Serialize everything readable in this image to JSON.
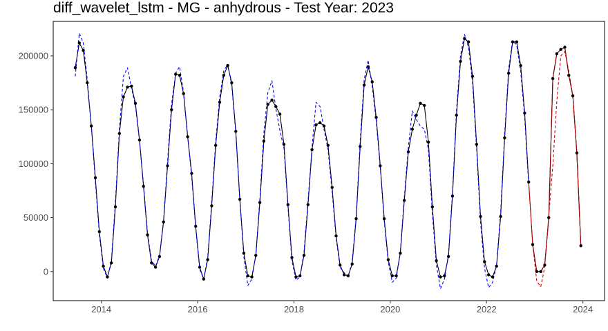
{
  "chart_data": {
    "type": "line",
    "title": "diff_wavelet_lstm - MG - anhydrous - Test Year: 2023",
    "xlabel": "",
    "ylabel": "",
    "grid": false,
    "xlim": [
      2013.0,
      2024.45
    ],
    "ylim": [
      -27000,
      232000
    ],
    "x_ticks": [
      2014,
      2016,
      2018,
      2020,
      2022,
      2024
    ],
    "y_ticks": [
      0,
      50000,
      100000,
      150000,
      200000
    ],
    "y_tick_labels": [
      "0",
      "50000",
      "100000",
      "150000",
      "200000"
    ],
    "colors": {
      "actual": "#000000",
      "train_fit": "#0000ff",
      "test_forecast": "#cc0000",
      "test_actual": "#8b0000",
      "axis": "#000000",
      "tick_text": "#4d4d4d"
    },
    "series": [
      {
        "style": "solid-with-points",
        "color": "#000000",
        "x": [
          2013.458,
          2013.542,
          2013.625,
          2013.708,
          2013.792,
          2013.875,
          2013.958,
          2014.042,
          2014.125,
          2014.208,
          2014.292,
          2014.375,
          2014.458,
          2014.542,
          2014.625,
          2014.708,
          2014.792,
          2014.875,
          2014.958,
          2015.042,
          2015.125,
          2015.208,
          2015.292,
          2015.375,
          2015.458,
          2015.542,
          2015.625,
          2015.708,
          2015.792,
          2015.875,
          2015.958,
          2016.042,
          2016.125,
          2016.208,
          2016.292,
          2016.375,
          2016.458,
          2016.542,
          2016.625,
          2016.708,
          2016.792,
          2016.875,
          2016.958,
          2017.042,
          2017.125,
          2017.208,
          2017.292,
          2017.375,
          2017.458,
          2017.542,
          2017.625,
          2017.708,
          2017.792,
          2017.875,
          2017.958,
          2018.042,
          2018.125,
          2018.208,
          2018.292,
          2018.375,
          2018.458,
          2018.542,
          2018.625,
          2018.708,
          2018.792,
          2018.875,
          2018.958,
          2019.042,
          2019.125,
          2019.208,
          2019.292,
          2019.375,
          2019.458,
          2019.542,
          2019.625,
          2019.708,
          2019.792,
          2019.875,
          2019.958,
          2020.042,
          2020.125,
          2020.208,
          2020.292,
          2020.375,
          2020.458,
          2020.542,
          2020.625,
          2020.708,
          2020.792,
          2020.875,
          2020.958,
          2021.042,
          2021.125,
          2021.208,
          2021.292,
          2021.375,
          2021.458,
          2021.542,
          2021.625,
          2021.708,
          2021.792,
          2021.875,
          2021.958,
          2022.042,
          2022.125,
          2022.208,
          2022.292,
          2022.375,
          2022.458,
          2022.542,
          2022.625,
          2022.708,
          2022.792,
          2022.875
        ],
        "values": [
          189000,
          212000,
          205000,
          175000,
          135000,
          87000,
          37000,
          5000,
          -5000,
          8000,
          60000,
          128000,
          162000,
          171000,
          172000,
          156000,
          122000,
          79000,
          34000,
          8000,
          4000,
          14000,
          46000,
          98000,
          150000,
          183000,
          182000,
          165000,
          125000,
          91000,
          42000,
          4000,
          -7000,
          11000,
          61000,
          117000,
          157000,
          182000,
          191000,
          175000,
          130000,
          67000,
          17000,
          -4000,
          -5000,
          15000,
          64000,
          121000,
          155000,
          159000,
          153000,
          146000,
          118000,
          62000,
          13000,
          -5000,
          -4000,
          15000,
          62000,
          113000,
          136000,
          138000,
          135000,
          117000,
          78000,
          33000,
          6000,
          -3000,
          -4000,
          7000,
          49000,
          116000,
          173000,
          190000,
          176000,
          143000,
          98000,
          49000,
          11000,
          -4000,
          -4000,
          17000,
          66000,
          111000,
          132000,
          145000,
          156000,
          154000,
          120000,
          60000,
          10000,
          -5000,
          -4000,
          14000,
          70000,
          145000,
          195000,
          216000,
          213000,
          181000,
          118000,
          51000,
          9000,
          -3000,
          -5000,
          5000,
          51000,
          124000,
          184000,
          213000,
          213000,
          191000,
          147000,
          83000
        ]
      },
      {
        "style": "dashed",
        "color": "#0000ff",
        "x": [
          2013.458,
          2013.542,
          2013.625,
          2013.708,
          2013.792,
          2013.875,
          2013.958,
          2014.042,
          2014.125,
          2014.208,
          2014.292,
          2014.375,
          2014.458,
          2014.542,
          2014.625,
          2014.708,
          2014.792,
          2014.875,
          2014.958,
          2015.042,
          2015.125,
          2015.208,
          2015.292,
          2015.375,
          2015.458,
          2015.542,
          2015.625,
          2015.708,
          2015.792,
          2015.875,
          2015.958,
          2016.042,
          2016.125,
          2016.208,
          2016.292,
          2016.375,
          2016.458,
          2016.542,
          2016.625,
          2016.708,
          2016.792,
          2016.875,
          2016.958,
          2017.042,
          2017.125,
          2017.208,
          2017.292,
          2017.375,
          2017.458,
          2017.542,
          2017.625,
          2017.708,
          2017.792,
          2017.875,
          2017.958,
          2018.042,
          2018.125,
          2018.208,
          2018.292,
          2018.375,
          2018.458,
          2018.542,
          2018.625,
          2018.708,
          2018.792,
          2018.875,
          2018.958,
          2019.042,
          2019.125,
          2019.208,
          2019.292,
          2019.375,
          2019.458,
          2019.542,
          2019.625,
          2019.708,
          2019.792,
          2019.875,
          2019.958,
          2020.042,
          2020.125,
          2020.208,
          2020.292,
          2020.375,
          2020.458,
          2020.542,
          2020.625,
          2020.708,
          2020.792,
          2020.875,
          2020.958,
          2021.042,
          2021.125,
          2021.208,
          2021.292,
          2021.375,
          2021.458,
          2021.542,
          2021.625,
          2021.708,
          2021.792,
          2021.875,
          2021.958,
          2022.042,
          2022.125,
          2022.208,
          2022.292,
          2022.375,
          2022.458,
          2022.542,
          2022.625,
          2022.708,
          2022.792,
          2022.875
        ],
        "values": [
          181000,
          221000,
          212000,
          178000,
          134000,
          84000,
          34000,
          3000,
          -6000,
          10000,
          64000,
          132000,
          181000,
          189000,
          170000,
          154000,
          121000,
          81000,
          36000,
          10000,
          5000,
          15000,
          47000,
          102000,
          155000,
          184000,
          190000,
          166000,
          126000,
          88000,
          41000,
          2000,
          -7000,
          13000,
          64000,
          121000,
          162000,
          186000,
          192000,
          173000,
          128000,
          66000,
          14000,
          -13000,
          -7000,
          16000,
          67000,
          128000,
          166000,
          177000,
          151000,
          131000,
          114000,
          60000,
          10000,
          -8000,
          -5000,
          18000,
          65000,
          115000,
          157000,
          153000,
          132000,
          113000,
          74000,
          31000,
          4000,
          -1000,
          -5000,
          9000,
          51000,
          121000,
          178000,
          196000,
          172000,
          140000,
          96000,
          47000,
          9000,
          -10000,
          -6000,
          18000,
          69000,
          115000,
          149000,
          141000,
          135000,
          132000,
          113000,
          54000,
          6000,
          -16000,
          -7000,
          16000,
          73000,
          149000,
          200000,
          220000,
          208000,
          176000,
          114000,
          46000,
          3000,
          -15000,
          -10000,
          6000,
          55000,
          127000,
          188000,
          214000,
          210000,
          186000,
          143000,
          80000
        ]
      },
      {
        "style": "solid-with-points",
        "color": "#000000",
        "x": [
          2022.958,
          2023.042,
          2023.125,
          2023.208,
          2023.292,
          2023.375,
          2023.458,
          2023.542,
          2023.625,
          2023.708,
          2023.792,
          2023.875,
          2023.958
        ],
        "values": [
          25000,
          0,
          0,
          6000,
          50000,
          179000,
          202000,
          206000,
          208000,
          182000,
          163000,
          110000,
          24000
        ]
      },
      {
        "style": "solid",
        "color": "#8b0000",
        "x": [
          2022.875,
          2022.958,
          2023.042,
          2023.125,
          2023.208,
          2023.292,
          2023.375,
          2023.458,
          2023.542,
          2023.625,
          2023.708,
          2023.792,
          2023.875,
          2023.958
        ],
        "values": [
          83000,
          25000,
          0,
          0,
          6000,
          50000,
          179000,
          202000,
          206000,
          208000,
          182000,
          163000,
          110000,
          24000
        ]
      },
      {
        "style": "dashed",
        "color": "#cc0000",
        "x": [
          2022.875,
          2022.958,
          2023.042,
          2023.125,
          2023.208,
          2023.292,
          2023.375,
          2023.458,
          2023.542,
          2023.625,
          2023.708,
          2023.792,
          2023.875,
          2023.958
        ],
        "values": [
          83000,
          25000,
          -9000,
          -14000,
          4000,
          52000,
          98000,
          158000,
          200000,
          204000,
          186000,
          163000,
          110000,
          24000
        ]
      }
    ]
  }
}
